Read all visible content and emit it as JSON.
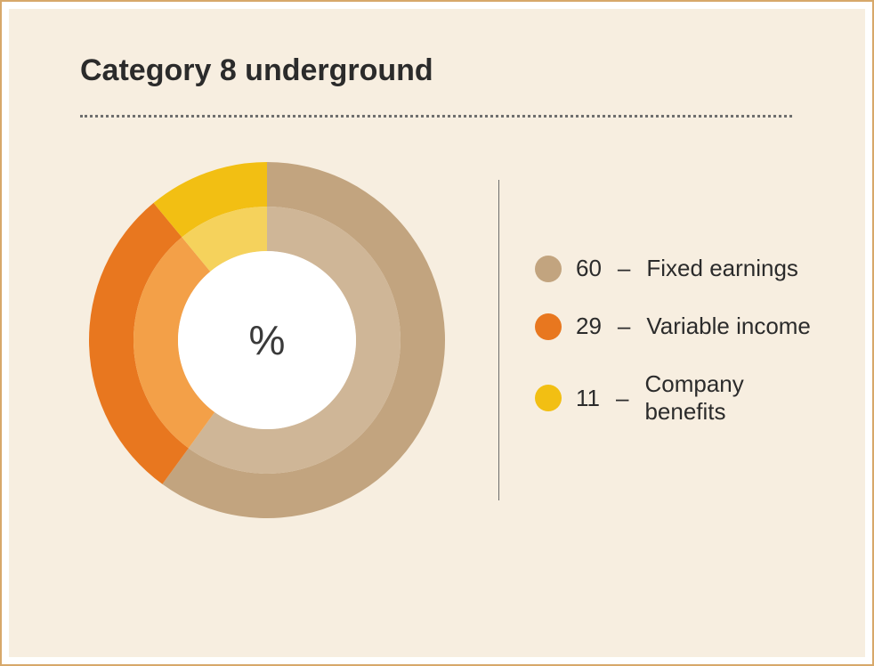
{
  "chart": {
    "type": "donut",
    "title": "Category 8 underground",
    "center_label": "%",
    "center_label_fontsize": 46,
    "title_fontsize": 34,
    "legend_fontsize": 26,
    "background_color": "#f7eee0",
    "frame_color": "#d7a86a",
    "dotted_separator_color": "#6e6e6e",
    "vline_color": "#6b6b6b",
    "outer_radius": 200,
    "middle_radius": 150,
    "inner_radius": 100,
    "start_angle_deg": 0,
    "direction": "clockwise",
    "series": [
      {
        "value": 60,
        "label": "Fixed earnings",
        "outer_color": "#c2a47f",
        "inner_color": "#cfb697"
      },
      {
        "value": 29,
        "label": "Variable income",
        "outer_color": "#e8771f",
        "inner_color": "#f3a048"
      },
      {
        "value": 11,
        "label": "Company benefits",
        "outer_color": "#f2bf13",
        "inner_color": "#f5d25c"
      }
    ]
  }
}
